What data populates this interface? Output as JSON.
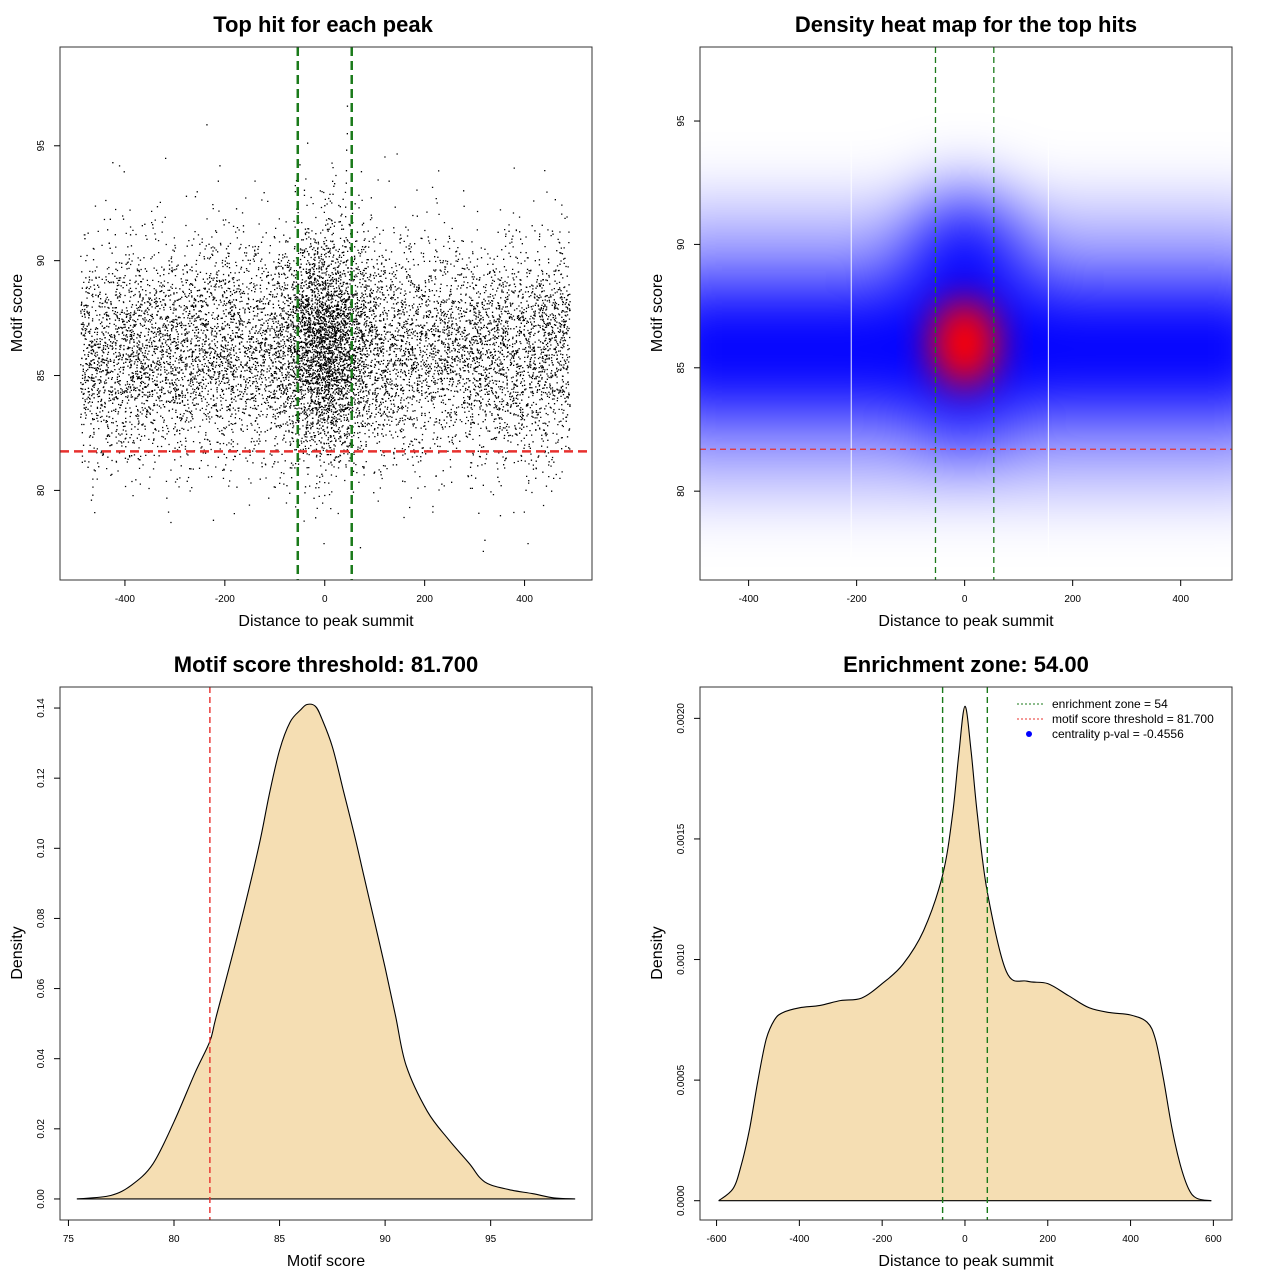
{
  "chart_data": [
    {
      "type": "scatter",
      "title": "Top hit for each peak",
      "xlabel": "Distance to peak summit",
      "ylabel": "Motif score",
      "xlim": [
        -530,
        535
      ],
      "ylim": [
        76.1,
        99.3
      ],
      "xticks": [
        "-400",
        "-200",
        "0",
        "200",
        "400"
      ],
      "yticks": [
        "80",
        "85",
        "90",
        "95"
      ],
      "points": "approximately 12000 hits with x in [-490, 490]; y mostly 78-95, densest near x=0, y=86",
      "hlines": [
        {
          "y": 81.7,
          "color": "#e8302e",
          "style": "dashed"
        }
      ],
      "vlines": [
        {
          "x": -54,
          "color": "#1a7a1a",
          "style": "dashed"
        },
        {
          "x": 54,
          "color": "#1a7a1a",
          "style": "dashed"
        }
      ],
      "grid": false
    },
    {
      "type": "heatmap",
      "title": "Density heat map for the top hits",
      "xlabel": "Distance to peak summit",
      "ylabel": "Motif score",
      "xlim": [
        -490,
        495
      ],
      "ylim": [
        76.4,
        98.0
      ],
      "xticks": [
        "-400",
        "-200",
        "0",
        "200",
        "400"
      ],
      "yticks": [
        "80",
        "85",
        "90",
        "95"
      ],
      "color_scale": [
        "#ffffff",
        "#0000ff",
        "#ff0000"
      ],
      "density_peak": {
        "x": 0,
        "y": 86
      },
      "hlines": [
        {
          "y": 81.7,
          "color": "#e8302e",
          "style": "dashed"
        }
      ],
      "vlines": [
        {
          "x": -54,
          "color": "#1a7a1a",
          "style": "dashed"
        },
        {
          "x": 54,
          "color": "#1a7a1a",
          "style": "dashed"
        }
      ],
      "grid": false
    },
    {
      "type": "area",
      "title": "Motif score threshold: 81.700",
      "xlabel": "Motif score",
      "ylabel": "Density",
      "xlim": [
        74.6,
        99.8
      ],
      "ylim": [
        -0.006,
        0.146
      ],
      "xticks": [
        "75",
        "80",
        "85",
        "90",
        "95"
      ],
      "yticks": [
        "0.00",
        "0.02",
        "0.04",
        "0.06",
        "0.08",
        "0.10",
        "0.12",
        "0.14"
      ],
      "fill": "#f5deb3",
      "x": [
        75.4,
        77,
        78,
        79,
        80,
        81,
        81.7,
        82,
        83,
        84,
        84.5,
        85,
        85.5,
        86,
        86.3,
        86.7,
        87,
        87.5,
        88,
        88.5,
        89,
        89.5,
        90,
        90.5,
        91,
        92,
        93,
        94,
        94.5,
        95,
        96,
        97,
        98,
        99
      ],
      "y": [
        0.0,
        0.001,
        0.004,
        0.01,
        0.022,
        0.036,
        0.045,
        0.052,
        0.075,
        0.1,
        0.115,
        0.128,
        0.136,
        0.1395,
        0.141,
        0.1405,
        0.137,
        0.129,
        0.117,
        0.105,
        0.092,
        0.079,
        0.066,
        0.052,
        0.038,
        0.025,
        0.017,
        0.01,
        0.006,
        0.004,
        0.0025,
        0.0015,
        0.0003,
        0.0
      ],
      "vlines": [
        {
          "x": 81.7,
          "color": "#e8302e",
          "style": "dashed"
        }
      ],
      "grid": false
    },
    {
      "type": "area",
      "title": "Enrichment zone: 54.00",
      "xlabel": "Distance to peak summit",
      "ylabel": "Density",
      "xlim": [
        -640,
        645
      ],
      "ylim": [
        -8e-05,
        0.00213
      ],
      "xticks": [
        "-600",
        "-400",
        "-200",
        "0",
        "200",
        "400",
        "600"
      ],
      "yticks": [
        "0.0000",
        "0.0005",
        "0.0010",
        "0.0015",
        "0.0020"
      ],
      "fill": "#f5deb3",
      "x": [
        -595,
        -560,
        -540,
        -520,
        -500,
        -480,
        -460,
        -440,
        -400,
        -350,
        -300,
        -250,
        -200,
        -150,
        -100,
        -54,
        -30,
        -15,
        0,
        15,
        30,
        54,
        100,
        150,
        200,
        250,
        300,
        350,
        400,
        440,
        460,
        480,
        500,
        520,
        540,
        560,
        595
      ],
      "y": [
        0.0,
        5e-05,
        0.00015,
        0.0003,
        0.0005,
        0.00067,
        0.00075,
        0.00078,
        0.0008,
        0.00081,
        0.00083,
        0.00084,
        0.0009,
        0.00098,
        0.00112,
        0.00135,
        0.0016,
        0.00185,
        0.00205,
        0.00186,
        0.0016,
        0.00128,
        0.00095,
        0.00091,
        0.0009,
        0.00085,
        0.0008,
        0.00078,
        0.00077,
        0.00074,
        0.00067,
        0.0005,
        0.0003,
        0.00015,
        5e-05,
        1e-05,
        0.0
      ],
      "vlines": [
        {
          "x": -54,
          "color": "#1a7a1a",
          "style": "dashed"
        },
        {
          "x": 54,
          "color": "#1a7a1a",
          "style": "dashed"
        }
      ],
      "legend": {
        "placement": "top-right",
        "items": [
          {
            "label": "enrichment zone = 54",
            "color": "#1a7a1a",
            "kind": "dotted-line"
          },
          {
            "label": "motif score threshold = 81.700",
            "color": "#e8302e",
            "kind": "dotted-line"
          },
          {
            "label": "centrality p-val = -0.4556",
            "color": "#0000ff",
            "kind": "point"
          }
        ]
      },
      "grid": false
    }
  ]
}
